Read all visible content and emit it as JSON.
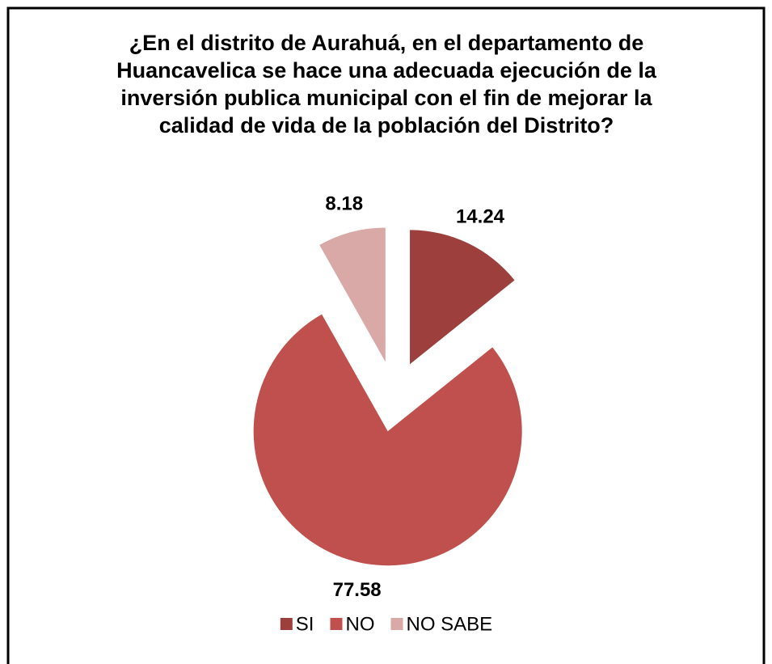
{
  "chart_data": {
    "type": "pie",
    "title": "¿En el distrito de Aurahuá, en el departamento de Huancavelica se hace una adecuada ejecución de la inversión publica municipal con el fin de mejorar la calidad de vida de la población del Distrito?",
    "categories": [
      "SI",
      "NO",
      "NO SABE"
    ],
    "values": [
      14.24,
      77.58,
      8.18
    ],
    "colors": [
      "#9c3f3d",
      "#c0504d",
      "#d9a9a8"
    ],
    "exploded": true,
    "legend": "bottom"
  }
}
